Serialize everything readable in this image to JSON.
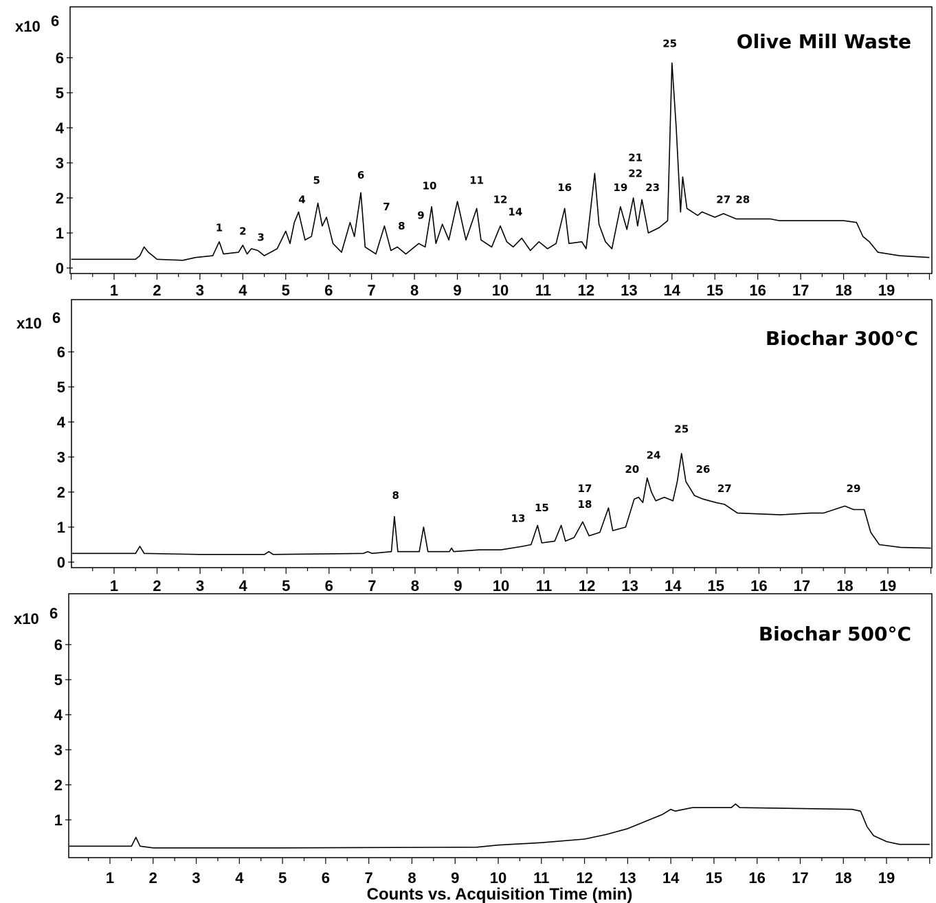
{
  "chart_data": [
    {
      "type": "line",
      "title": "Olive Mill Waste",
      "y_multiplier_label": "x10",
      "y_multiplier_exp": "6",
      "xlabel": "",
      "xlim": [
        0,
        20
      ],
      "ylim": [
        -0.15,
        7.4
      ],
      "x_ticks": [
        "1",
        "2",
        "3",
        "4",
        "5",
        "6",
        "7",
        "8",
        "9",
        "10",
        "11",
        "12",
        "13",
        "14",
        "15",
        "16",
        "17",
        "18",
        "19"
      ],
      "y_ticks": [
        "0",
        "1",
        "2",
        "3",
        "4",
        "5",
        "6"
      ],
      "series": [
        {
          "points": [
            [
              0,
              0.25
            ],
            [
              1.5,
              0.25
            ],
            [
              1.6,
              0.35
            ],
            [
              1.7,
              0.6
            ],
            [
              1.8,
              0.45
            ],
            [
              1.9,
              0.35
            ],
            [
              2.0,
              0.25
            ],
            [
              2.6,
              0.22
            ],
            [
              2.9,
              0.3
            ],
            [
              3.3,
              0.35
            ],
            [
              3.45,
              0.75
            ],
            [
              3.55,
              0.4
            ],
            [
              3.9,
              0.45
            ],
            [
              4.0,
              0.65
            ],
            [
              4.1,
              0.4
            ],
            [
              4.2,
              0.55
            ],
            [
              4.35,
              0.5
            ],
            [
              4.5,
              0.35
            ],
            [
              4.8,
              0.55
            ],
            [
              5.0,
              1.05
            ],
            [
              5.1,
              0.7
            ],
            [
              5.2,
              1.3
            ],
            [
              5.3,
              1.6
            ],
            [
              5.45,
              0.8
            ],
            [
              5.6,
              0.9
            ],
            [
              5.75,
              1.85
            ],
            [
              5.85,
              1.2
            ],
            [
              5.95,
              1.45
            ],
            [
              6.1,
              0.7
            ],
            [
              6.3,
              0.45
            ],
            [
              6.5,
              1.3
            ],
            [
              6.6,
              0.9
            ],
            [
              6.75,
              2.15
            ],
            [
              6.85,
              0.6
            ],
            [
              7.1,
              0.4
            ],
            [
              7.3,
              1.2
            ],
            [
              7.45,
              0.5
            ],
            [
              7.6,
              0.6
            ],
            [
              7.8,
              0.4
            ],
            [
              8.1,
              0.7
            ],
            [
              8.25,
              0.6
            ],
            [
              8.4,
              1.75
            ],
            [
              8.5,
              0.7
            ],
            [
              8.65,
              1.25
            ],
            [
              8.8,
              0.8
            ],
            [
              9.0,
              1.9
            ],
            [
              9.2,
              0.8
            ],
            [
              9.45,
              1.7
            ],
            [
              9.55,
              0.8
            ],
            [
              9.8,
              0.6
            ],
            [
              10.0,
              1.2
            ],
            [
              10.15,
              0.75
            ],
            [
              10.3,
              0.6
            ],
            [
              10.5,
              0.85
            ],
            [
              10.7,
              0.5
            ],
            [
              10.9,
              0.75
            ],
            [
              11.1,
              0.55
            ],
            [
              11.3,
              0.7
            ],
            [
              11.5,
              1.7
            ],
            [
              11.6,
              0.7
            ],
            [
              11.9,
              0.75
            ],
            [
              12.0,
              0.55
            ],
            [
              12.2,
              2.7
            ],
            [
              12.3,
              1.25
            ],
            [
              12.45,
              0.75
            ],
            [
              12.6,
              0.55
            ],
            [
              12.8,
              1.75
            ],
            [
              12.95,
              1.1
            ],
            [
              13.1,
              2.0
            ],
            [
              13.2,
              1.2
            ],
            [
              13.3,
              1.95
            ],
            [
              13.45,
              1.0
            ],
            [
              13.7,
              1.15
            ],
            [
              13.9,
              1.35
            ],
            [
              14.0,
              5.85
            ],
            [
              14.1,
              4.0
            ],
            [
              14.2,
              1.6
            ],
            [
              14.25,
              2.6
            ],
            [
              14.35,
              1.7
            ],
            [
              14.6,
              1.5
            ],
            [
              14.7,
              1.6
            ],
            [
              15.0,
              1.45
            ],
            [
              15.2,
              1.55
            ],
            [
              15.5,
              1.4
            ],
            [
              16.3,
              1.4
            ],
            [
              16.5,
              1.35
            ],
            [
              18.0,
              1.35
            ],
            [
              18.3,
              1.3
            ],
            [
              18.45,
              0.9
            ],
            [
              18.6,
              0.75
            ],
            [
              18.8,
              0.45
            ],
            [
              19.3,
              0.35
            ],
            [
              20.0,
              0.3
            ]
          ]
        }
      ],
      "annotations": [
        {
          "label": "1",
          "x": 3.45,
          "y": 1.05
        },
        {
          "label": "2",
          "x": 4.0,
          "y": 0.95
        },
        {
          "label": "3",
          "x": 4.42,
          "y": 0.77
        },
        {
          "label": "4",
          "x": 5.38,
          "y": 1.85
        },
        {
          "label": "5",
          "x": 5.72,
          "y": 2.4
        },
        {
          "label": "6",
          "x": 6.75,
          "y": 2.55
        },
        {
          "label": "7",
          "x": 7.35,
          "y": 1.65
        },
        {
          "label": "8",
          "x": 7.7,
          "y": 1.1
        },
        {
          "label": "9",
          "x": 8.15,
          "y": 1.4
        },
        {
          "label": "10",
          "x": 8.35,
          "y": 2.25
        },
        {
          "label": "11",
          "x": 9.45,
          "y": 2.4
        },
        {
          "label": "12",
          "x": 10.0,
          "y": 1.85
        },
        {
          "label": "14",
          "x": 10.35,
          "y": 1.5
        },
        {
          "label": "16",
          "x": 11.5,
          "y": 2.2
        },
        {
          "label": "19",
          "x": 12.8,
          "y": 2.2
        },
        {
          "label": "21",
          "x": 13.15,
          "y": 3.05
        },
        {
          "label": "22",
          "x": 13.15,
          "y": 2.6
        },
        {
          "label": "23",
          "x": 13.55,
          "y": 2.2
        },
        {
          "label": "25",
          "x": 13.95,
          "y": 6.3
        },
        {
          "label": "27",
          "x": 15.2,
          "y": 1.85
        },
        {
          "label": "28",
          "x": 15.65,
          "y": 1.85
        }
      ]
    },
    {
      "type": "line",
      "title": "Biochar 300°C",
      "y_multiplier_label": "x10",
      "y_multiplier_exp": "6",
      "xlabel": "",
      "xlim": [
        0,
        20
      ],
      "ylim": [
        -0.15,
        7.0
      ],
      "x_ticks": [
        "1",
        "2",
        "3",
        "4",
        "5",
        "6",
        "7",
        "8",
        "9",
        "10",
        "11",
        "12",
        "13",
        "14",
        "15",
        "16",
        "17",
        "18",
        "19"
      ],
      "y_ticks": [
        "0",
        "1",
        "2",
        "3",
        "4",
        "5",
        "6"
      ],
      "series": [
        {
          "points": [
            [
              0,
              0.25
            ],
            [
              1.5,
              0.25
            ],
            [
              1.6,
              0.45
            ],
            [
              1.7,
              0.25
            ],
            [
              3.0,
              0.22
            ],
            [
              4.5,
              0.22
            ],
            [
              4.6,
              0.3
            ],
            [
              4.7,
              0.22
            ],
            [
              6.8,
              0.25
            ],
            [
              6.9,
              0.3
            ],
            [
              7.0,
              0.25
            ],
            [
              7.45,
              0.3
            ],
            [
              7.52,
              1.3
            ],
            [
              7.6,
              0.3
            ],
            [
              8.1,
              0.3
            ],
            [
              8.2,
              1.0
            ],
            [
              8.3,
              0.3
            ],
            [
              8.8,
              0.3
            ],
            [
              8.85,
              0.4
            ],
            [
              8.9,
              0.3
            ],
            [
              9.5,
              0.35
            ],
            [
              10.0,
              0.35
            ],
            [
              10.5,
              0.45
            ],
            [
              10.7,
              0.5
            ],
            [
              10.85,
              1.05
            ],
            [
              10.95,
              0.55
            ],
            [
              11.25,
              0.6
            ],
            [
              11.4,
              1.05
            ],
            [
              11.5,
              0.6
            ],
            [
              11.7,
              0.7
            ],
            [
              11.9,
              1.15
            ],
            [
              12.05,
              0.75
            ],
            [
              12.3,
              0.85
            ],
            [
              12.5,
              1.55
            ],
            [
              12.6,
              0.9
            ],
            [
              12.9,
              1.0
            ],
            [
              13.1,
              1.8
            ],
            [
              13.2,
              1.85
            ],
            [
              13.3,
              1.7
            ],
            [
              13.4,
              2.4
            ],
            [
              13.5,
              2.0
            ],
            [
              13.6,
              1.75
            ],
            [
              13.8,
              1.85
            ],
            [
              14.0,
              1.75
            ],
            [
              14.1,
              2.3
            ],
            [
              14.2,
              3.1
            ],
            [
              14.3,
              2.3
            ],
            [
              14.5,
              1.9
            ],
            [
              14.7,
              1.8
            ],
            [
              15.0,
              1.7
            ],
            [
              15.2,
              1.65
            ],
            [
              15.5,
              1.4
            ],
            [
              16.5,
              1.35
            ],
            [
              17.2,
              1.4
            ],
            [
              17.5,
              1.4
            ],
            [
              18.0,
              1.6
            ],
            [
              18.2,
              1.5
            ],
            [
              18.45,
              1.5
            ],
            [
              18.6,
              0.85
            ],
            [
              18.8,
              0.5
            ],
            [
              19.3,
              0.42
            ],
            [
              20.0,
              0.4
            ]
          ]
        }
      ],
      "annotations": [
        {
          "label": "8",
          "x": 7.55,
          "y": 1.8
        },
        {
          "label": "13",
          "x": 10.4,
          "y": 1.15
        },
        {
          "label": "15",
          "x": 10.95,
          "y": 1.45
        },
        {
          "label": "17",
          "x": 11.95,
          "y": 2.0
        },
        {
          "label": "18",
          "x": 11.95,
          "y": 1.55
        },
        {
          "label": "20",
          "x": 13.05,
          "y": 2.55
        },
        {
          "label": "24",
          "x": 13.55,
          "y": 2.95
        },
        {
          "label": "25",
          "x": 14.2,
          "y": 3.7
        },
        {
          "label": "26",
          "x": 14.7,
          "y": 2.55
        },
        {
          "label": "27",
          "x": 15.2,
          "y": 2.0
        },
        {
          "label": "29",
          "x": 18.2,
          "y": 2.0
        }
      ]
    },
    {
      "type": "line",
      "title": "Biochar 500°C",
      "y_multiplier_label": "x10",
      "y_multiplier_exp": "6",
      "xlabel": "Counts vs. Acquisition Time (min)",
      "xlim": [
        0,
        20
      ],
      "ylim": [
        -0.15,
        7.35
      ],
      "x_ticks": [
        "1",
        "2",
        "3",
        "4",
        "5",
        "6",
        "7",
        "8",
        "9",
        "10",
        "11",
        "12",
        "13",
        "14",
        "15",
        "16",
        "17",
        "18",
        "19"
      ],
      "y_ticks": [
        "1",
        "2",
        "3",
        "4",
        "5",
        "6"
      ],
      "series": [
        {
          "points": [
            [
              0,
              0.25
            ],
            [
              1.5,
              0.25
            ],
            [
              1.6,
              0.5
            ],
            [
              1.7,
              0.25
            ],
            [
              2.0,
              0.2
            ],
            [
              5.0,
              0.2
            ],
            [
              9.5,
              0.22
            ],
            [
              10.0,
              0.28
            ],
            [
              11.0,
              0.35
            ],
            [
              12.0,
              0.45
            ],
            [
              12.5,
              0.58
            ],
            [
              13.0,
              0.75
            ],
            [
              13.5,
              1.0
            ],
            [
              13.8,
              1.15
            ],
            [
              14.0,
              1.3
            ],
            [
              14.1,
              1.25
            ],
            [
              14.5,
              1.35
            ],
            [
              15.0,
              1.35
            ],
            [
              15.4,
              1.35
            ],
            [
              15.5,
              1.45
            ],
            [
              15.6,
              1.35
            ],
            [
              18.2,
              1.3
            ],
            [
              18.4,
              1.25
            ],
            [
              18.55,
              0.8
            ],
            [
              18.7,
              0.55
            ],
            [
              19.0,
              0.38
            ],
            [
              19.3,
              0.3
            ],
            [
              20.0,
              0.3
            ]
          ]
        }
      ],
      "annotations": []
    }
  ]
}
